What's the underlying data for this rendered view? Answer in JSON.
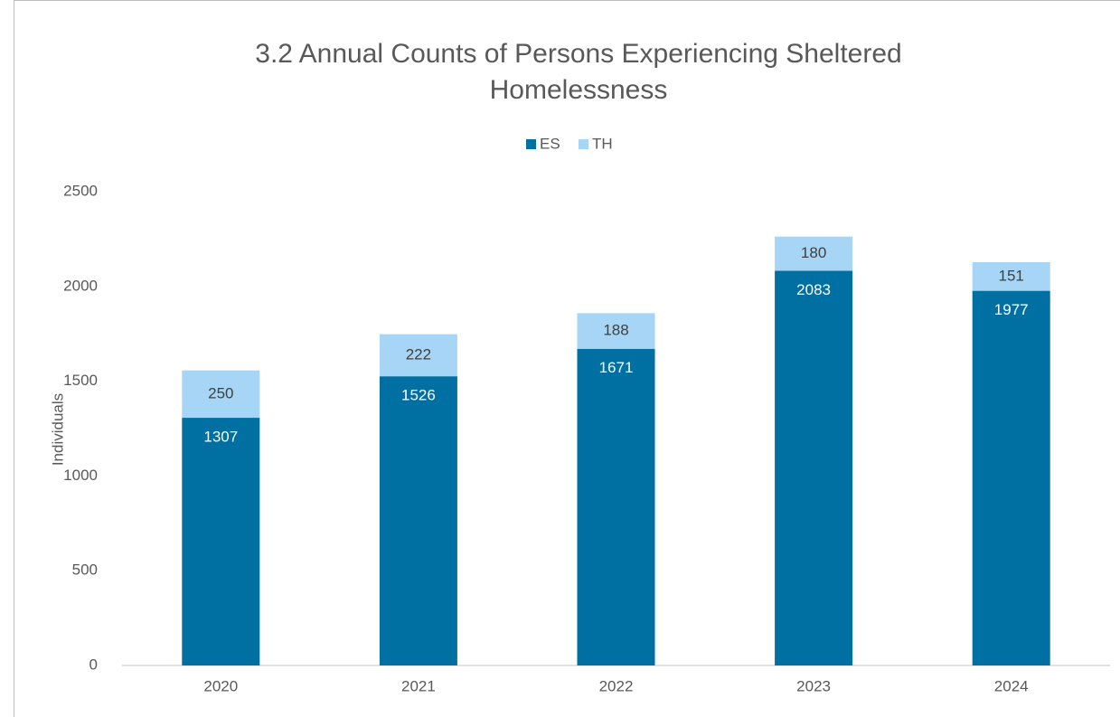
{
  "chart_data": {
    "type": "stacked_bar",
    "title": "3.2 Annual Counts of Persons Experiencing Sheltered Homelessness",
    "y_label": "Individuals",
    "categories": [
      "2020",
      "2021",
      "2022",
      "2023",
      "2024"
    ],
    "series": [
      {
        "name": "ES",
        "color": "#0070a3",
        "label_color": "#ffffff",
        "values": [
          1307,
          1526,
          1671,
          2083,
          1977
        ]
      },
      {
        "name": "TH",
        "color": "#a6d5f5",
        "label_color": "#404040",
        "values": [
          250,
          222,
          188,
          180,
          151
        ]
      }
    ],
    "ylim": [
      0,
      2500
    ],
    "yticks": [
      0,
      500,
      1000,
      1500,
      2000,
      2500
    ],
    "grid": false,
    "legend": "top"
  }
}
